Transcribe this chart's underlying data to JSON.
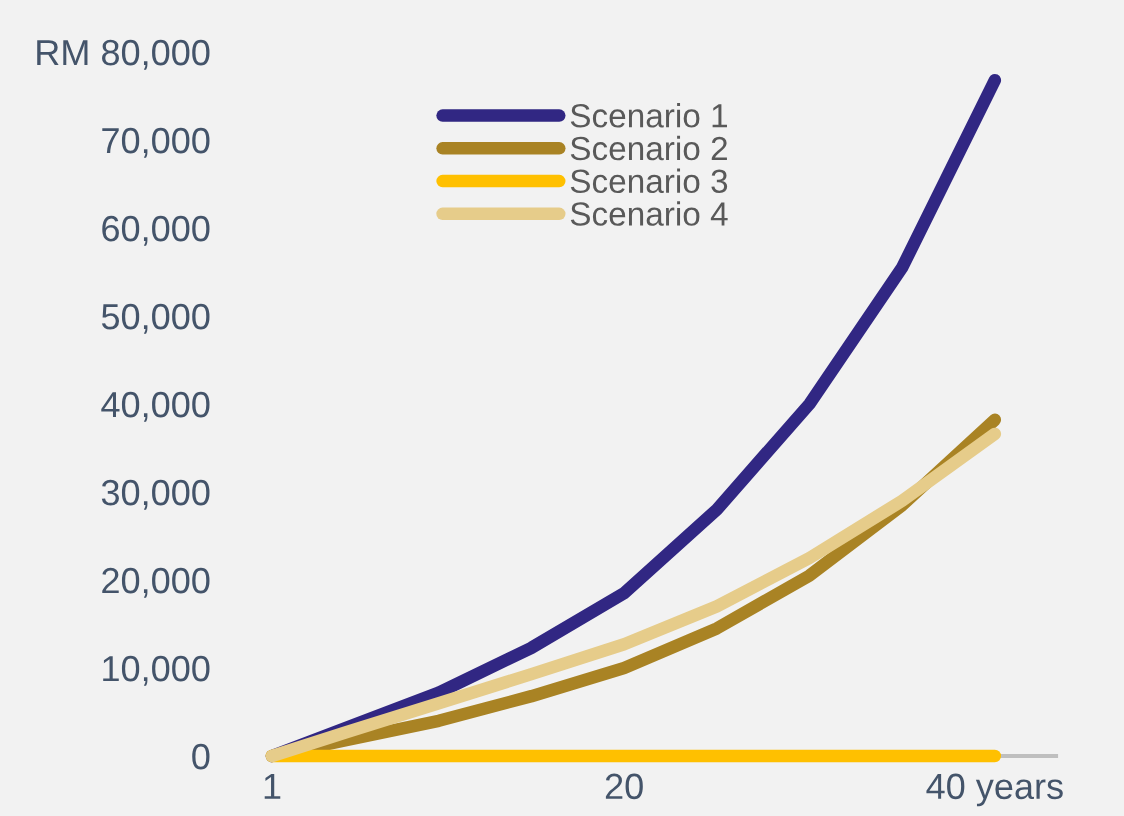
{
  "chart_data": {
    "type": "line",
    "x": [
      1,
      5,
      10,
      15,
      20,
      25,
      30,
      35,
      40
    ],
    "series": [
      {
        "name": "Scenario 1",
        "color": "#312783",
        "values": [
          0,
          3200,
          7200,
          12300,
          18500,
          28000,
          40000,
          55500,
          76800
        ]
      },
      {
        "name": "Scenario 2",
        "color": "#a98324",
        "values": [
          0,
          1800,
          4000,
          6800,
          10000,
          14500,
          20500,
          28500,
          38200
        ]
      },
      {
        "name": "Scenario 3",
        "color": "#ffc000",
        "values": [
          0,
          0,
          0,
          0,
          0,
          0,
          0,
          0,
          0
        ]
      },
      {
        "name": "Scenario 4",
        "color": "#e6cc8a",
        "values": [
          0,
          2700,
          6000,
          9300,
          12700,
          17000,
          22500,
          29000,
          36600
        ]
      }
    ],
    "xlim": [
      1,
      43.3
    ],
    "xticks": [
      1,
      20,
      {
        "value": 40,
        "label": "40 years"
      }
    ],
    "ylim": [
      0,
      80000
    ],
    "yticks": [
      0,
      {
        "value": 10000,
        "label": "10,000"
      },
      {
        "value": 20000,
        "label": "20,000"
      },
      {
        "value": 30000,
        "label": "30,000"
      },
      {
        "value": 40000,
        "label": "40,000"
      },
      {
        "value": 50000,
        "label": "50,000"
      },
      {
        "value": 60000,
        "label": "60,000"
      },
      {
        "value": 70000,
        "label": "70,000"
      },
      {
        "value": 80000,
        "label": "RM 80,000"
      }
    ],
    "grid": false,
    "legend": "top",
    "marker": "none",
    "line_style": "solid"
  }
}
